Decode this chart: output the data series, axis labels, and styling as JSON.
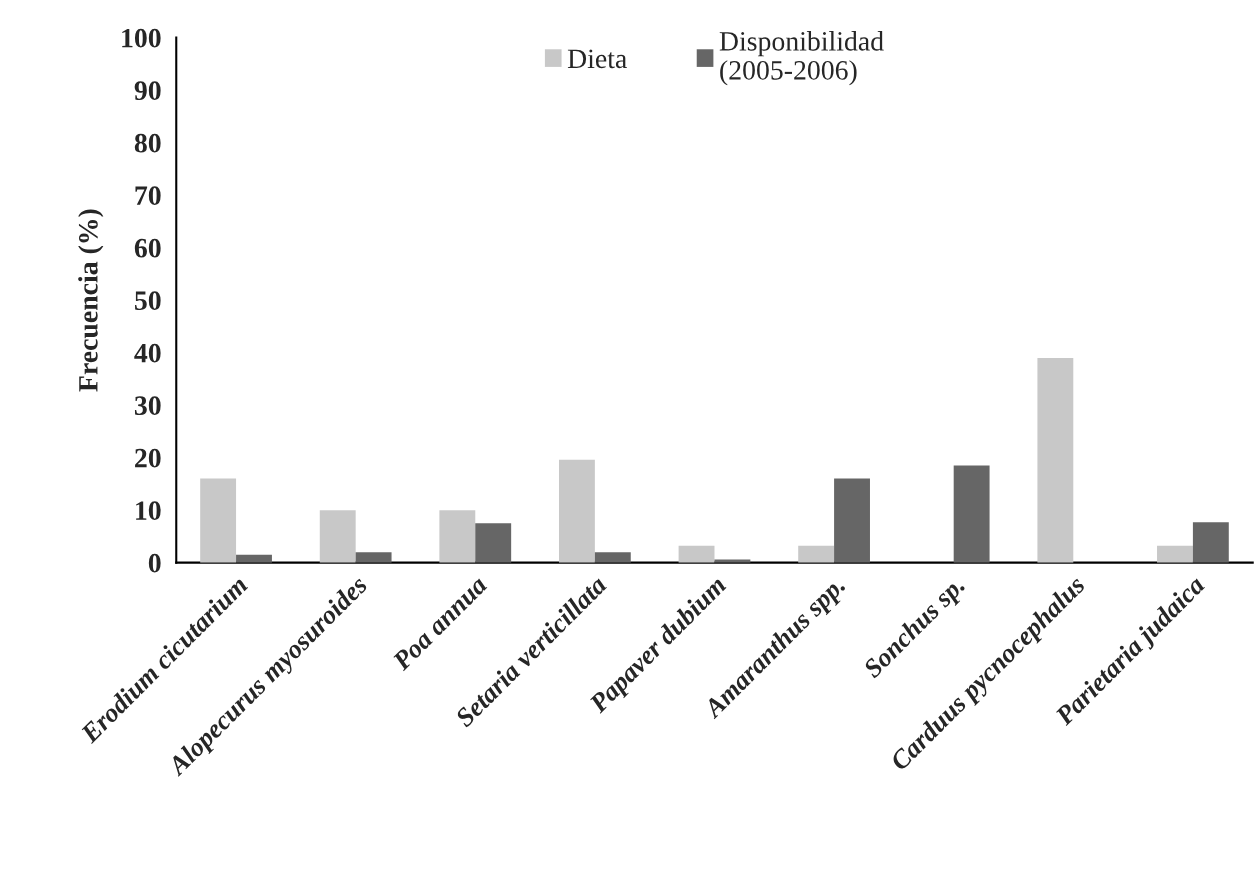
{
  "chart_data": {
    "type": "bar",
    "ylabel": "Frecuencia (%)",
    "categories": [
      "Erodium cicutarium",
      "Alopecurus myosuroides",
      "Poa annua",
      "Setaria verticillata",
      "Papaver dubium",
      "Amaranthus spp.",
      "Sonchus sp.",
      "Carduus pycnocephalus",
      "Parietaria judaica"
    ],
    "series": [
      {
        "name": "Dieta",
        "color": "#c8c8c8",
        "values": [
          16,
          10,
          10,
          19.6,
          3.2,
          3.2,
          null,
          39,
          3.2
        ]
      },
      {
        "name": "Disponibilidad\n(2005-2006)",
        "color": "#666666",
        "values": [
          1.5,
          2,
          7.5,
          2,
          0.6,
          16,
          18.5,
          null,
          7.7
        ]
      }
    ],
    "ylim": [
      0,
      100
    ],
    "yticks": [
      0,
      10,
      20,
      30,
      40,
      50,
      60,
      70,
      80,
      90,
      100
    ],
    "grid": false,
    "legend": "top"
  }
}
